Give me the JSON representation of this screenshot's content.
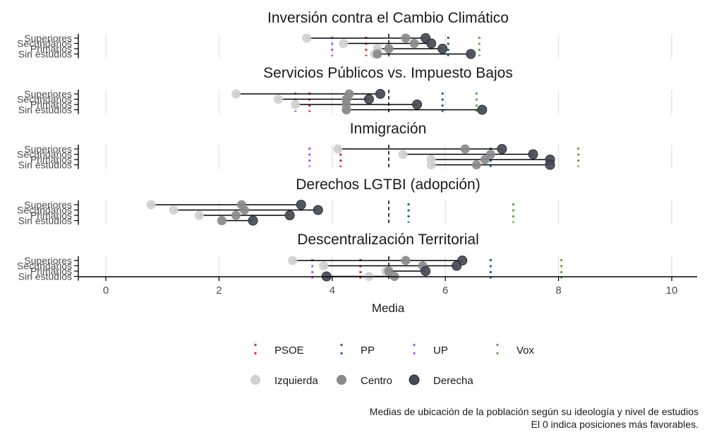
{
  "chart_data": {
    "type": "dumbbell",
    "xlabel": "Media",
    "xlim": [
      0,
      10.5
    ],
    "x_ticks": [
      0,
      2,
      4,
      6,
      8,
      10
    ],
    "levels": [
      "Superiores",
      "Secundarios",
      "Primarios",
      "Sin estudios"
    ],
    "reference_line": 5,
    "caption": [
      "Medias de ubicación de la población según su ideología y nivel de estudios",
      "El 0 indica posiciones más favorables."
    ],
    "legend_parties": [
      {
        "name": "PSOE",
        "color": "#e8222a"
      },
      {
        "name": "PP",
        "color": "#1f5fa0"
      },
      {
        "name": "UP",
        "color": "#a855f7"
      },
      {
        "name": "Vox",
        "color": "#63a83a"
      }
    ],
    "legend_ideology": [
      {
        "name": "Izquierda",
        "color": "#d0d0d0"
      },
      {
        "name": "Centro",
        "color": "#8a8a8a"
      },
      {
        "name": "Derecha",
        "color": "#454a52"
      }
    ],
    "panels": [
      {
        "title": "Inversión contra el Cambio Climático",
        "parties": {
          "PSOE": 4.6,
          "PP": 6.05,
          "UP": 4.0,
          "Vox": 6.6
        },
        "rows": [
          {
            "level": "Superiores",
            "izquierda": 3.55,
            "centro": 5.3,
            "derecha": 5.65
          },
          {
            "level": "Secundarios",
            "izquierda": 4.2,
            "centro": 5.45,
            "derecha": 5.75
          },
          {
            "level": "Primarios",
            "izquierda": 4.8,
            "centro": 5.0,
            "derecha": 5.95
          },
          {
            "level": "Sin estudios",
            "izquierda": 4.75,
            "centro": 4.8,
            "derecha": 6.45
          }
        ]
      },
      {
        "title": "Servicios Públicos vs. Impuesto Bajos",
        "parties": {
          "PSOE": 3.6,
          "PP": 5.95,
          "UP": 3.35,
          "Vox": 6.55
        },
        "rows": [
          {
            "level": "Superiores",
            "izquierda": 2.3,
            "centro": 4.3,
            "derecha": 4.85
          },
          {
            "level": "Secundarios",
            "izquierda": 3.05,
            "centro": 4.25,
            "derecha": 4.65
          },
          {
            "level": "Primarios",
            "izquierda": 3.35,
            "centro": 4.25,
            "derecha": 5.5
          },
          {
            "level": "Sin estudios",
            "izquierda": 4.25,
            "centro": 4.25,
            "derecha": 6.65
          }
        ]
      },
      {
        "title": "Inmigración",
        "parties": {
          "PSOE": 4.15,
          "PP": 6.8,
          "UP": 3.6,
          "Vox": 8.35
        },
        "rows": [
          {
            "level": "Superiores",
            "izquierda": 4.1,
            "centro": 6.35,
            "derecha": 7.0
          },
          {
            "level": "Secundarios",
            "izquierda": 5.25,
            "centro": 6.8,
            "derecha": 7.55
          },
          {
            "level": "Primarios",
            "izquierda": 5.75,
            "centro": 6.7,
            "derecha": 7.85
          },
          {
            "level": "Sin estudios",
            "izquierda": 5.75,
            "centro": 6.55,
            "derecha": 7.85
          }
        ]
      },
      {
        "title": "Derechos LGTBI (adopción)",
        "parties": {
          "PSOE": null,
          "PP": 5.35,
          "UP": null,
          "Vox": 7.2
        },
        "rows": [
          {
            "level": "Superiores",
            "izquierda": 0.8,
            "centro": 2.4,
            "derecha": 3.45
          },
          {
            "level": "Secundarios",
            "izquierda": 1.2,
            "centro": 2.45,
            "derecha": 3.75
          },
          {
            "level": "Primarios",
            "izquierda": 1.65,
            "centro": 2.3,
            "derecha": 3.25
          },
          {
            "level": "Sin estudios",
            "izquierda": 2.05,
            "centro": 2.05,
            "derecha": 2.6
          }
        ]
      },
      {
        "title": "Descentralización Territorial",
        "parties": {
          "PSOE": 4.5,
          "PP": 6.8,
          "UP": 3.65,
          "Vox": 8.05
        },
        "rows": [
          {
            "level": "Superiores",
            "izquierda": 3.3,
            "centro": 5.3,
            "derecha": 6.3
          },
          {
            "level": "Secundarios",
            "izquierda": 3.85,
            "centro": 5.6,
            "derecha": 6.2
          },
          {
            "level": "Primarios",
            "izquierda": 4.95,
            "centro": 5.0,
            "derecha": 5.65
          },
          {
            "level": "Sin estudios",
            "izquierda": 4.65,
            "centro": 5.1,
            "derecha": 3.9
          }
        ]
      }
    ]
  }
}
